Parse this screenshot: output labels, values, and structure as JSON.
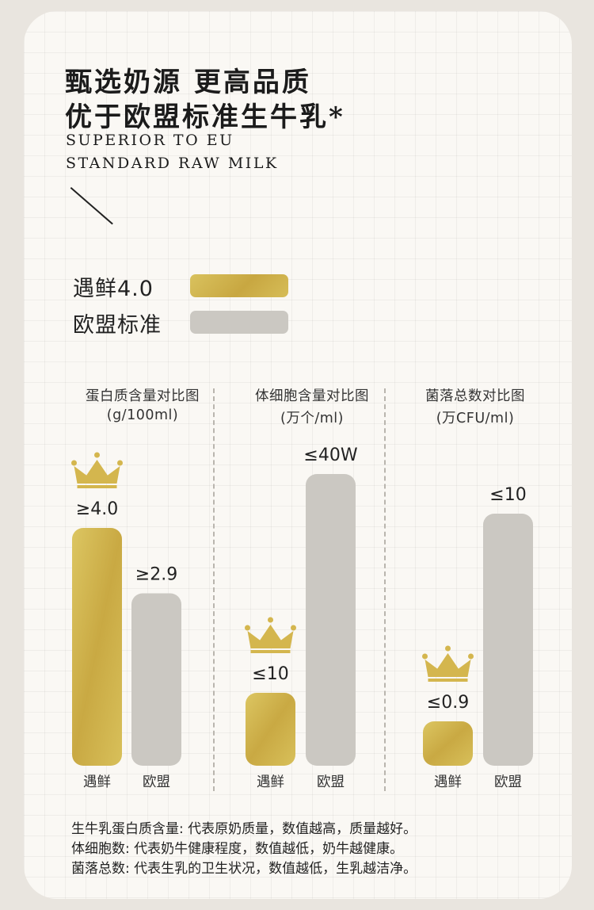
{
  "heading": {
    "zh_line1": "甄选奶源 更高品质",
    "zh_line2": "优于欧盟标准生牛乳*",
    "en_line1": "SUPERIOR TO EU",
    "en_line2": "STANDARD RAW MILK"
  },
  "legend": {
    "brand": "遇鲜4.0",
    "eu": "欧盟标准"
  },
  "colors": {
    "brand_gold": "#cbb04a",
    "eu_gray": "#cbc8c2",
    "crown_gold": "#d4b64e"
  },
  "chart_data": [
    {
      "type": "bar",
      "title": "蛋白质含量对比图",
      "subtitle": "(g/100ml)",
      "categories": [
        "遇鲜",
        "欧盟"
      ],
      "values": [
        4.0,
        2.9
      ],
      "data_labels": [
        "≥4.0",
        "≥2.9"
      ],
      "highlight": 0
    },
    {
      "type": "bar",
      "title": "体细胞含量对比图",
      "subtitle": "(万个/ml)",
      "categories": [
        "遇鲜",
        "欧盟"
      ],
      "values": [
        10,
        40
      ],
      "data_labels": [
        "≤10",
        "≤40W"
      ],
      "highlight": 0
    },
    {
      "type": "bar",
      "title": "菌落总数对比图",
      "subtitle": "(万CFU/ml)",
      "categories": [
        "遇鲜",
        "欧盟"
      ],
      "values": [
        0.9,
        10
      ],
      "data_labels": [
        "≤0.9",
        "≤10"
      ],
      "highlight": 0
    }
  ],
  "notes": [
    "生牛乳蛋白质含量: 代表原奶质量，数值越高，质量越好。",
    "体细胞数: 代表奶牛健康程度，数值越低，奶牛越健康。",
    "菌落总数: 代表生乳的卫生状况，数值越低，生乳越洁净。"
  ]
}
